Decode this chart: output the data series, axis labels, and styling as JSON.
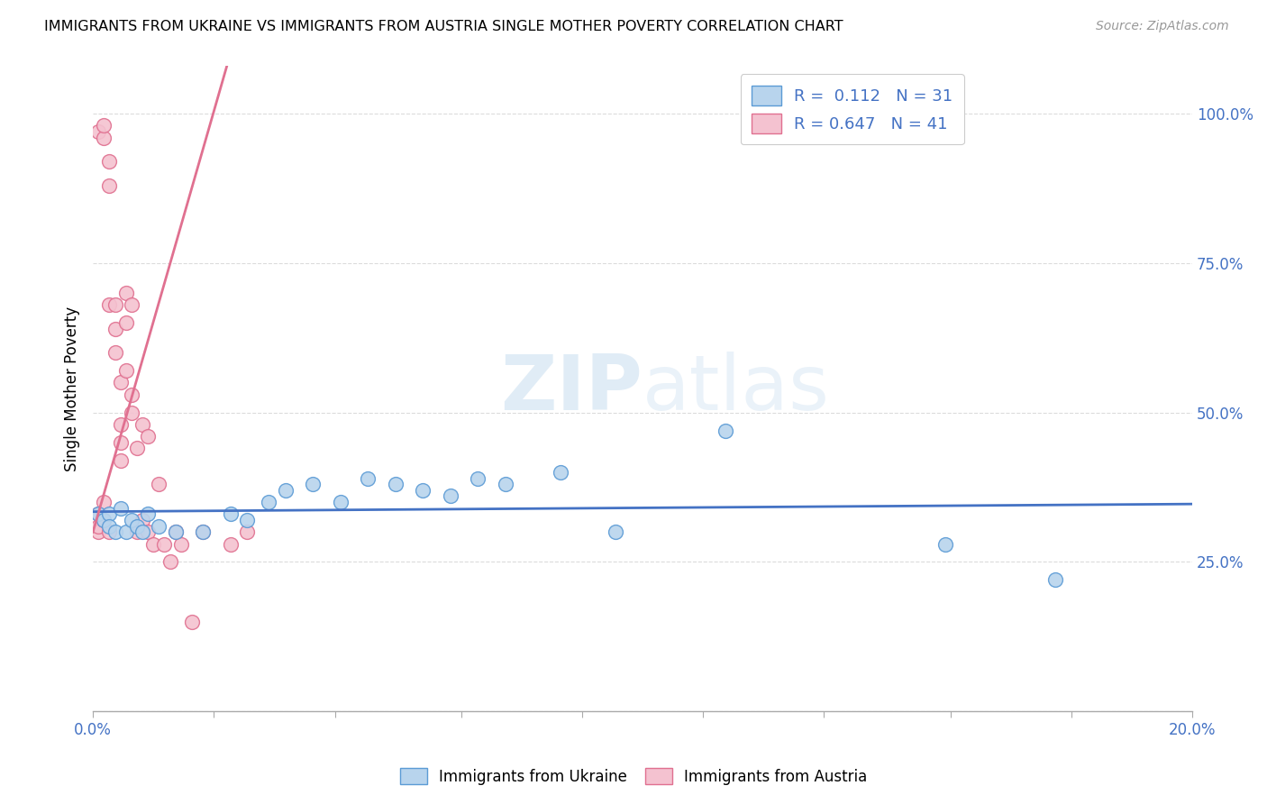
{
  "title": "IMMIGRANTS FROM UKRAINE VS IMMIGRANTS FROM AUSTRIA SINGLE MOTHER POVERTY CORRELATION CHART",
  "source": "Source: ZipAtlas.com",
  "ylabel": "Single Mother Poverty",
  "xlim": [
    0.0,
    0.2
  ],
  "ylim": [
    0.0,
    1.08
  ],
  "ytick_labels": [
    "",
    "25.0%",
    "50.0%",
    "75.0%",
    "100.0%"
  ],
  "ytick_values": [
    0.0,
    0.25,
    0.5,
    0.75,
    1.0
  ],
  "xtick_labels": [
    "0.0%",
    "",
    "",
    "",
    "",
    "",
    "",
    "",
    "",
    "20.0%"
  ],
  "xtick_values": [
    0.0,
    0.022,
    0.044,
    0.067,
    0.089,
    0.111,
    0.133,
    0.156,
    0.178,
    0.2
  ],
  "ukraine_color": "#b8d4ed",
  "ukraine_edge": "#5b9bd5",
  "austria_color": "#f4c2d0",
  "austria_edge": "#e07090",
  "ukraine_R": 0.112,
  "ukraine_N": 31,
  "austria_R": 0.647,
  "austria_N": 41,
  "ukraine_line_color": "#4472c4",
  "austria_line_color": "#e07090",
  "tick_color": "#4472c4",
  "watermark_color": "#cce0f0",
  "background": "#ffffff",
  "grid_color": "#d8d8d8",
  "ukraine_x": [
    0.001,
    0.002,
    0.003,
    0.003,
    0.004,
    0.005,
    0.006,
    0.007,
    0.008,
    0.009,
    0.01,
    0.012,
    0.015,
    0.02,
    0.025,
    0.028,
    0.032,
    0.035,
    0.04,
    0.045,
    0.05,
    0.055,
    0.06,
    0.065,
    0.07,
    0.075,
    0.085,
    0.095,
    0.115,
    0.155,
    0.175
  ],
  "ukraine_y": [
    0.33,
    0.32,
    0.33,
    0.31,
    0.3,
    0.34,
    0.3,
    0.32,
    0.31,
    0.3,
    0.33,
    0.31,
    0.3,
    0.3,
    0.33,
    0.32,
    0.35,
    0.37,
    0.38,
    0.35,
    0.39,
    0.38,
    0.37,
    0.36,
    0.39,
    0.38,
    0.4,
    0.3,
    0.47,
    0.28,
    0.22
  ],
  "austria_x": [
    0.001,
    0.001,
    0.001,
    0.001,
    0.002,
    0.002,
    0.002,
    0.002,
    0.003,
    0.003,
    0.003,
    0.003,
    0.004,
    0.004,
    0.004,
    0.005,
    0.005,
    0.005,
    0.005,
    0.006,
    0.006,
    0.006,
    0.007,
    0.007,
    0.007,
    0.008,
    0.008,
    0.009,
    0.009,
    0.01,
    0.01,
    0.011,
    0.012,
    0.013,
    0.014,
    0.015,
    0.016,
    0.018,
    0.02,
    0.025,
    0.028
  ],
  "austria_y": [
    0.3,
    0.31,
    0.33,
    0.97,
    0.96,
    0.98,
    0.32,
    0.35,
    0.3,
    0.68,
    0.88,
    0.92,
    0.6,
    0.64,
    0.68,
    0.42,
    0.45,
    0.48,
    0.55,
    0.57,
    0.65,
    0.7,
    0.5,
    0.53,
    0.68,
    0.3,
    0.44,
    0.32,
    0.48,
    0.3,
    0.46,
    0.28,
    0.38,
    0.28,
    0.25,
    0.3,
    0.28,
    0.15,
    0.3,
    0.28,
    0.3
  ],
  "austria_trend_x": [
    0.0,
    0.028
  ],
  "austria_trend_y": [
    0.32,
    0.95
  ]
}
